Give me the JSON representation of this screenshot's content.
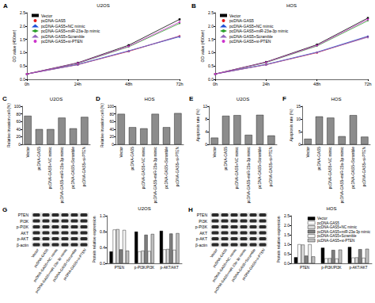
{
  "chart_data": [
    {
      "label": "A",
      "type": "line",
      "title": "U2OS",
      "ylabel": "OD value (450nm)",
      "categories": [
        "0h",
        "24h",
        "48h",
        "72h"
      ],
      "ylim": [
        0,
        2.5
      ],
      "yticks": [
        {
          "value": 0,
          "label": "0.0"
        },
        0.5,
        {
          "value": 1,
          "label": "1.0"
        },
        1.5,
        {
          "value": 2,
          "label": "2.0"
        },
        2.5
      ],
      "grid": false,
      "legend": "top-left",
      "series": [
        {
          "name": "Vector",
          "color": "#000000",
          "marker": "rect",
          "values": [
            0.2,
            0.62,
            1.28,
            2.25
          ]
        },
        {
          "name": "pcDNA-GAS5",
          "color": "#e41a1c",
          "marker": "circle",
          "values": [
            0.2,
            0.55,
            1.05,
            1.62
          ]
        },
        {
          "name": "pcDNA-GAS5+NC mimic",
          "color": "#1f4fd6",
          "marker": "triangle",
          "values": [
            0.2,
            0.56,
            1.07,
            1.6
          ]
        },
        {
          "name": "pcDNA-GAS5+miR-23a-3p mimic",
          "color": "#2ca02c",
          "marker": "diamond",
          "values": [
            0.2,
            0.6,
            1.22,
            2.1
          ]
        },
        {
          "name": "pcDNA-GAS5+Scramble",
          "color": "#9467bd",
          "marker": "triangle",
          "values": [
            0.2,
            0.55,
            1.06,
            1.63
          ]
        },
        {
          "name": "pcDNA-GAS5+si-PTEN",
          "color": "#cc33cc",
          "marker": "circle",
          "values": [
            0.2,
            0.61,
            1.24,
            2.15
          ]
        }
      ],
      "annotations": [
        {
          "text": "**",
          "x": "72h",
          "y": 1.9
        }
      ]
    },
    {
      "label": "B",
      "type": "line",
      "title": "HOS",
      "ylabel": "OD value (450nm)",
      "categories": [
        "0h",
        "24h",
        "48h",
        "72h"
      ],
      "ylim": [
        0,
        2.5
      ],
      "yticks": [
        {
          "value": 0,
          "label": "0.0"
        },
        0.5,
        {
          "value": 1,
          "label": "1.0"
        },
        1.5,
        {
          "value": 2,
          "label": "2.0"
        },
        2.5
      ],
      "grid": false,
      "legend": "top-left",
      "series": [
        {
          "name": "Vector",
          "color": "#000000",
          "marker": "rect",
          "values": [
            0.2,
            0.65,
            1.3,
            2.3
          ]
        },
        {
          "name": "pcDNA-GAS5",
          "color": "#e41a1c",
          "marker": "circle",
          "values": [
            0.2,
            0.55,
            1.0,
            1.6
          ]
        },
        {
          "name": "pcDNA-GAS5+NC mimic",
          "color": "#1f4fd6",
          "marker": "triangle",
          "values": [
            0.2,
            0.56,
            1.02,
            1.62
          ]
        },
        {
          "name": "pcDNA-GAS5+miR-23a-3p mimic",
          "color": "#2ca02c",
          "marker": "diamond",
          "values": [
            0.2,
            0.63,
            1.25,
            2.2
          ]
        },
        {
          "name": "pcDNA-GAS5+Scramble",
          "color": "#9467bd",
          "marker": "triangle",
          "values": [
            0.2,
            0.55,
            1.01,
            1.58
          ]
        },
        {
          "name": "pcDNA-GAS5+si-PTEN",
          "color": "#cc33cc",
          "marker": "circle",
          "values": [
            0.2,
            0.64,
            1.27,
            2.25
          ]
        }
      ],
      "annotations": [
        {
          "text": "**",
          "x": "72h",
          "y": 1.95
        }
      ]
    },
    {
      "label": "C",
      "type": "bar",
      "title": "U2OS",
      "ylabel": "Relative invasion cell (%)",
      "categories": [
        "Vector",
        "pcDNA-GAS5",
        "pcDNA-GAS5+NC mimic",
        "pcDNA-GAS5+miR-23a-3p mimic",
        "pcDNA-GAS5+Scramble",
        "pcDNA-GAS5+si-PTEN"
      ],
      "values": [
        75,
        40,
        40,
        70,
        42,
        72
      ],
      "color": "#8c8c8c",
      "ylim": [
        0,
        100
      ],
      "yticks": [
        0,
        20,
        40,
        60,
        80,
        100
      ],
      "grid": false,
      "annotations": [
        {
          "text": "**",
          "x": "pcDNA-GAS5",
          "y": 52
        },
        {
          "text": "**",
          "x": "pcDNA-GAS5+miR-23a-3p mimic",
          "y": 82
        },
        {
          "text": "**",
          "x": "pcDNA-GAS5+si-PTEN",
          "y": 84
        }
      ]
    },
    {
      "label": "D",
      "type": "bar",
      "title": "HOS",
      "ylabel": "Relative invasion cell (%)",
      "categories": [
        "Vector",
        "pcDNA-GAS5",
        "pcDNA-GAS5+NC mimic",
        "pcDNA-GAS5+miR-23a-3p mimic",
        "pcDNA-GAS5+Scramble",
        "pcDNA-GAS5+si-PTEN"
      ],
      "values": [
        80,
        45,
        42,
        80,
        45,
        82
      ],
      "color": "#8c8c8c",
      "ylim": [
        0,
        100
      ],
      "yticks": [
        0,
        20,
        40,
        60,
        80,
        100
      ],
      "grid": false,
      "annotations": [
        {
          "text": "**",
          "x": "pcDNA-GAS5",
          "y": 57
        },
        {
          "text": "**",
          "x": "pcDNA-GAS5+miR-23a-3p mimic",
          "y": 92
        },
        {
          "text": "**",
          "x": "pcDNA-GAS5+si-PTEN",
          "y": 94
        }
      ]
    },
    {
      "label": "E",
      "type": "bar",
      "title": "U2OS",
      "ylabel": "Apoptosis rate (%)",
      "categories": [
        "Vector",
        "pcDNA-GAS5",
        "pcDNA-GAS5+NC mimic",
        "pcDNA-GAS5+miR-23a-3p mimic",
        "pcDNA-GAS5+Scramble",
        "pcDNA-GAS5+si-PTEN"
      ],
      "values": [
        2.1,
        9.0,
        9.2,
        3.0,
        9.3,
        2.8
      ],
      "color": "#8c8c8c",
      "ylim": [
        0,
        12
      ],
      "yticks": [
        0,
        4,
        8,
        12
      ],
      "grid": false,
      "annotations": [
        {
          "text": "**",
          "x": "pcDNA-GAS5",
          "y": 10.3
        },
        {
          "text": "**",
          "x": "pcDNA-GAS5+miR-23a-3p mimic",
          "y": 10.4
        },
        {
          "text": "**",
          "x": "pcDNA-GAS5+si-PTEN",
          "y": 10.6
        }
      ]
    },
    {
      "label": "F",
      "type": "bar",
      "title": "HOS",
      "ylabel": "Apoptosis rate (%)",
      "categories": [
        "Vector",
        "pcDNA-GAS5",
        "pcDNA-GAS5+NC mimic",
        "pcDNA-GAS5+miR-23a-3p mimic",
        "pcDNA-GAS5+Scramble",
        "pcDNA-GAS5+si-PTEN"
      ],
      "values": [
        2.2,
        11.0,
        10.5,
        3.2,
        11.5,
        3.0
      ],
      "color": "#8c8c8c",
      "ylim": [
        0,
        15
      ],
      "yticks": [
        0,
        5,
        10,
        15
      ],
      "grid": false,
      "annotations": [
        {
          "text": "**",
          "x": "pcDNA-GAS5",
          "y": 12.4
        },
        {
          "text": "**",
          "x": "pcDNA-GAS5+miR-23a-3p mimic",
          "y": 12.4
        },
        {
          "text": "**",
          "x": "pcDNA-GAS5+si-PTEN",
          "y": 12.8
        }
      ]
    },
    {
      "label": "G",
      "type": "bar",
      "title": "U2OS",
      "ylabel": "Protein relative expression",
      "categories": [
        "PTEN",
        "p-PI3K/PI3K",
        "p-AKT/AKT"
      ],
      "ylim": [
        0,
        1.2
      ],
      "yticks": [
        {
          "value": 0,
          "label": "0.0"
        },
        0.4,
        0.8,
        1.2
      ],
      "grid": false,
      "series": [
        {
          "name": "Vector",
          "color": "#000000",
          "values": [
            0.3,
            0.8,
            0.82
          ]
        },
        {
          "name": "pcDNA-GAS5",
          "color": "#ffffff",
          "values": [
            0.85,
            0.3,
            0.35
          ]
        },
        {
          "name": "pcDNA-GAS5+NC mimic",
          "color": "#d9d9d9",
          "values": [
            0.86,
            0.32,
            0.36
          ]
        },
        {
          "name": "pcDNA-GAS5+miR-23a-3p mimic",
          "color": "#7f7f7f",
          "values": [
            0.35,
            0.72,
            0.75
          ]
        },
        {
          "name": "pcDNA-GAS5+Scramble",
          "color": "#f2f2f2",
          "values": [
            0.84,
            0.31,
            0.34
          ]
        },
        {
          "name": "pcDNA-GAS5+si-PTEN",
          "color": "#bfbfbf",
          "values": [
            0.32,
            0.74,
            0.76
          ]
        }
      ],
      "annotations": [
        {
          "text": "**",
          "x": "PTEN",
          "y": 1.0
        },
        {
          "text": "**",
          "x": "p-PI3K/PI3K",
          "y": 0.95
        },
        {
          "text": "**",
          "x": "p-AKT/AKT",
          "y": 0.97
        }
      ]
    },
    {
      "label": "H",
      "type": "bar",
      "title": "HOS",
      "ylabel": "Protein relative expression",
      "categories": [
        "PTEN",
        "p-PI3K/PI3K",
        "p-AKT/AKT"
      ],
      "ylim": [
        0,
        2.5
      ],
      "yticks": [
        {
          "value": 0,
          "label": "0.0"
        },
        0.5,
        {
          "value": 1,
          "label": "1.0"
        },
        1.5,
        {
          "value": 2,
          "label": "2.0"
        },
        2.5
      ],
      "grid": false,
      "legend": "top-right",
      "series": [
        {
          "name": "Vector",
          "color": "#000000",
          "values": [
            0.32,
            0.82,
            0.86
          ]
        },
        {
          "name": "pcDNA-GAS5",
          "color": "#ffffff",
          "values": [
            1.0,
            0.26,
            0.3
          ]
        },
        {
          "name": "pcDNA-GAS5+NC mimic",
          "color": "#d9d9d9",
          "values": [
            0.98,
            0.27,
            0.31
          ]
        },
        {
          "name": "pcDNA-GAS5+miR-23a-3p mimic",
          "color": "#7f7f7f",
          "values": [
            0.4,
            0.7,
            0.74
          ]
        },
        {
          "name": "pcDNA-GAS5+Scramble",
          "color": "#f2f2f2",
          "values": [
            1.0,
            0.25,
            0.29
          ]
        },
        {
          "name": "pcDNA-GAS5+si-PTEN",
          "color": "#bfbfbf",
          "values": [
            0.36,
            0.72,
            0.76
          ]
        }
      ],
      "annotations": [
        {
          "text": "**",
          "x": "PTEN",
          "y": 1.15
        },
        {
          "text": "**",
          "x": "p-PI3K/PI3K",
          "y": 0.95
        },
        {
          "text": "**",
          "x": "p-AKT/AKT",
          "y": 0.98
        }
      ]
    }
  ],
  "blots": [
    {
      "rows": [
        "PTEN",
        "PI3K",
        "p-PI3K",
        "AKT",
        "p-AKT",
        "β-actin"
      ],
      "lanes": [
        "Vector",
        "pcDNA-GAS5",
        "pcDNA-GAS5+NC mimic",
        "pcDNA-GAS5+miR-23a-3p mimic",
        "pcDNA-GAS5+Scramble",
        "pcDNA-GAS5+si-PTEN"
      ]
    },
    {
      "rows": [
        "PTEN",
        "PI3K",
        "p-PI3K",
        "AKT",
        "p-AKT",
        "β-actin"
      ],
      "lanes": [
        "Vector",
        "pcDNA-GAS5",
        "pcDNA-GAS5+NC mimic",
        "pcDNA-GAS5+miR-23a-3p mimic",
        "pcDNA-GAS5+Scramble",
        "pcDNA-GAS5+si-PTEN"
      ]
    }
  ]
}
